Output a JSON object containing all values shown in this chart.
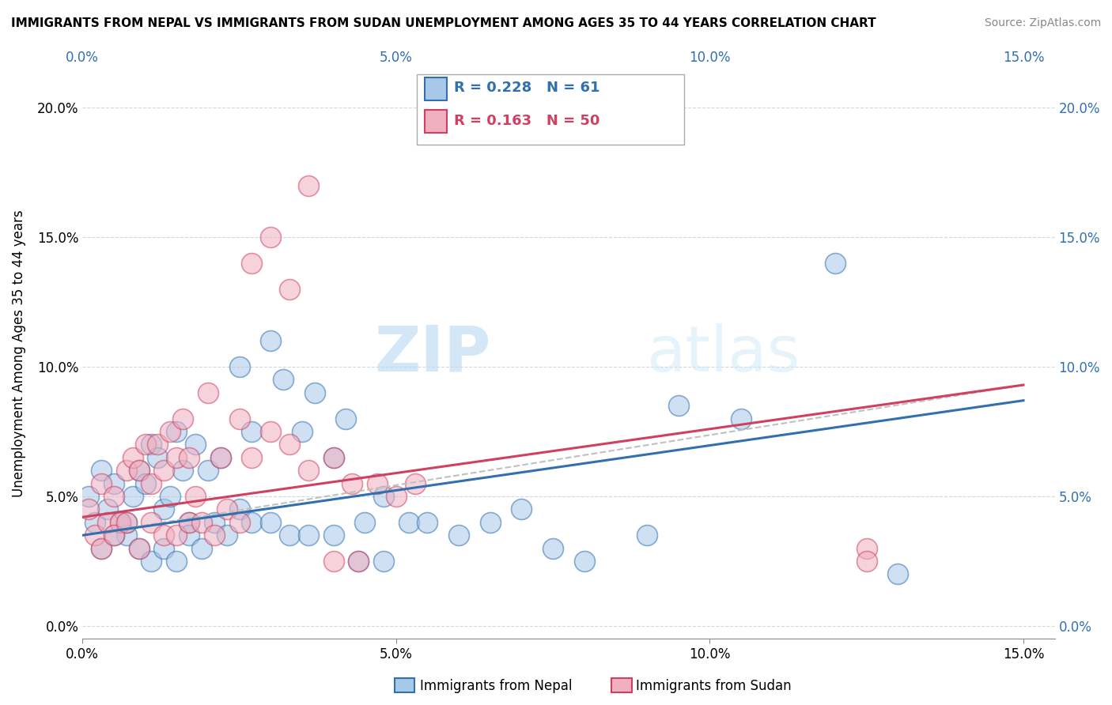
{
  "title": "IMMIGRANTS FROM NEPAL VS IMMIGRANTS FROM SUDAN UNEMPLOYMENT AMONG AGES 35 TO 44 YEARS CORRELATION CHART",
  "source": "Source: ZipAtlas.com",
  "ylabel": "Unemployment Among Ages 35 to 44 years",
  "legend_label_1": "Immigrants from Nepal",
  "legend_label_2": "Immigrants from Sudan",
  "R1": 0.228,
  "N1": 61,
  "R2": 0.163,
  "N2": 50,
  "color1": "#a8c8e8",
  "color2": "#f0b0c0",
  "trendline1_color": "#3070b0",
  "trendline2_color": "#d04060",
  "diag_color": "#c0c0c0",
  "xlim": [
    0.0,
    0.155
  ],
  "ylim": [
    -0.005,
    0.215
  ],
  "xticks": [
    0.0,
    0.05,
    0.1,
    0.15
  ],
  "yticks": [
    0.0,
    0.05,
    0.1,
    0.15,
    0.2
  ],
  "xtick_labels": [
    "0.0%",
    "5.0%",
    "10.0%",
    "15.0%"
  ],
  "ytick_labels": [
    "0.0%",
    "5.0%",
    "10.0%",
    "15.0%",
    "20.0%"
  ],
  "watermark_zip": "ZIP",
  "watermark_atlas": "atlas",
  "trendline1_x0": 0.0,
  "trendline1_y0": 0.035,
  "trendline1_x1": 0.15,
  "trendline1_y1": 0.087,
  "trendline2_x0": 0.0,
  "trendline2_y0": 0.042,
  "trendline2_x1": 0.15,
  "trendline2_y1": 0.093,
  "nepal_x": [
    0.001,
    0.002,
    0.003,
    0.004,
    0.005,
    0.006,
    0.007,
    0.008,
    0.009,
    0.01,
    0.011,
    0.012,
    0.013,
    0.014,
    0.015,
    0.016,
    0.017,
    0.018,
    0.02,
    0.022,
    0.025,
    0.027,
    0.03,
    0.032,
    0.035,
    0.037,
    0.04,
    0.042,
    0.045,
    0.048,
    0.003,
    0.005,
    0.007,
    0.009,
    0.011,
    0.013,
    0.015,
    0.017,
    0.019,
    0.021,
    0.023,
    0.025,
    0.027,
    0.03,
    0.033,
    0.036,
    0.04,
    0.044,
    0.048,
    0.052,
    0.055,
    0.06,
    0.065,
    0.07,
    0.075,
    0.08,
    0.09,
    0.095,
    0.105,
    0.12,
    0.13
  ],
  "nepal_y": [
    0.05,
    0.04,
    0.06,
    0.045,
    0.055,
    0.04,
    0.035,
    0.05,
    0.06,
    0.055,
    0.07,
    0.065,
    0.045,
    0.05,
    0.075,
    0.06,
    0.04,
    0.07,
    0.06,
    0.065,
    0.1,
    0.075,
    0.11,
    0.095,
    0.075,
    0.09,
    0.065,
    0.08,
    0.04,
    0.05,
    0.03,
    0.035,
    0.04,
    0.03,
    0.025,
    0.03,
    0.025,
    0.035,
    0.03,
    0.04,
    0.035,
    0.045,
    0.04,
    0.04,
    0.035,
    0.035,
    0.035,
    0.025,
    0.025,
    0.04,
    0.04,
    0.035,
    0.04,
    0.045,
    0.03,
    0.025,
    0.035,
    0.085,
    0.08,
    0.14,
    0.02
  ],
  "sudan_x": [
    0.001,
    0.002,
    0.003,
    0.004,
    0.005,
    0.006,
    0.007,
    0.008,
    0.009,
    0.01,
    0.011,
    0.012,
    0.013,
    0.014,
    0.015,
    0.016,
    0.017,
    0.018,
    0.02,
    0.022,
    0.025,
    0.027,
    0.03,
    0.033,
    0.036,
    0.04,
    0.043,
    0.047,
    0.05,
    0.053,
    0.003,
    0.005,
    0.007,
    0.009,
    0.011,
    0.013,
    0.015,
    0.017,
    0.019,
    0.021,
    0.023,
    0.025,
    0.027,
    0.03,
    0.033,
    0.036,
    0.04,
    0.044,
    0.125,
    0.125
  ],
  "sudan_y": [
    0.045,
    0.035,
    0.055,
    0.04,
    0.05,
    0.04,
    0.06,
    0.065,
    0.06,
    0.07,
    0.055,
    0.07,
    0.06,
    0.075,
    0.065,
    0.08,
    0.065,
    0.05,
    0.09,
    0.065,
    0.08,
    0.065,
    0.075,
    0.07,
    0.06,
    0.065,
    0.055,
    0.055,
    0.05,
    0.055,
    0.03,
    0.035,
    0.04,
    0.03,
    0.04,
    0.035,
    0.035,
    0.04,
    0.04,
    0.035,
    0.045,
    0.04,
    0.14,
    0.15,
    0.13,
    0.17,
    0.025,
    0.025,
    0.03,
    0.025
  ]
}
